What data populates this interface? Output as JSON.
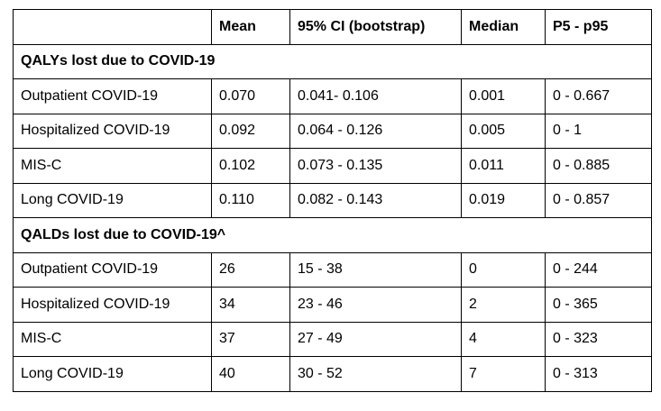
{
  "table": {
    "headers": [
      "",
      "Mean",
      "95% CI (bootstrap)",
      "Median",
      "P5 - p95"
    ],
    "sections": [
      {
        "title": "QALYs lost due to COVID-19",
        "rows": [
          [
            "Outpatient COVID-19",
            "0.070",
            "0.041- 0.106",
            "0.001",
            "0 - 0.667"
          ],
          [
            "Hospitalized COVID-19",
            "0.092",
            "0.064 - 0.126",
            "0.005",
            "0 - 1"
          ],
          [
            "MIS-C",
            "0.102",
            "0.073 - 0.135",
            "0.011",
            "0 - 0.885"
          ],
          [
            "Long COVID-19",
            "0.110",
            "0.082 - 0.143",
            "0.019",
            "0 - 0.857"
          ]
        ]
      },
      {
        "title": "QALDs lost due to COVID-19^",
        "rows": [
          [
            "Outpatient COVID-19",
            "26",
            "15 - 38",
            "0",
            "0 - 244"
          ],
          [
            "Hospitalized COVID-19",
            "34",
            "23 - 46",
            "2",
            "0 - 365"
          ],
          [
            "MIS-C",
            "37",
            "27 - 49",
            "4",
            "0 - 323"
          ],
          [
            "Long COVID-19",
            "40",
            "30 - 52",
            "7",
            "0 - 313"
          ]
        ]
      }
    ]
  }
}
